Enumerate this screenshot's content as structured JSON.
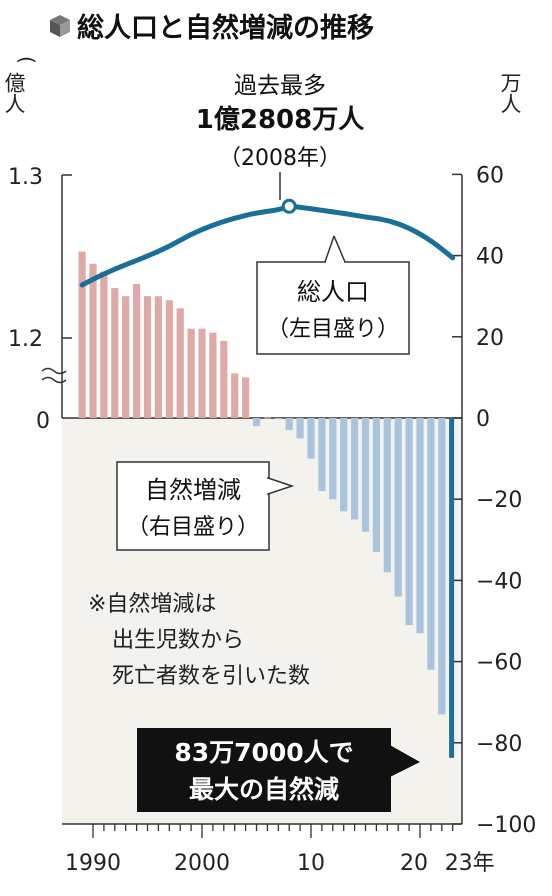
{
  "title": "総人口と自然増減の推移",
  "left_unit": "億人",
  "right_unit": "万人",
  "peak_annotation": {
    "line1": "過去最多",
    "line2": "1億2808万人",
    "line3": "（2008年）"
  },
  "population_label": {
    "line1": "総人口",
    "line2": "（左目盛り）"
  },
  "natural_label": {
    "line1": "自然増減",
    "line2": "（右目盛り）"
  },
  "note": {
    "line1": "※自然増減は",
    "line2": "出生児数から",
    "line3": "死亡者数を引いた数"
  },
  "callout": {
    "line1": "83万7000人で",
    "line2": "最大の自然減"
  },
  "colors": {
    "population_line": "#1a6f96",
    "positive_bar": "#dea9a6",
    "negative_bar": "#a9c4dc",
    "highlight_bar": "#1a6f96",
    "lower_panel_bg": "#f3f2ed",
    "callout_bg": "#111111"
  },
  "chart_data": {
    "type": "bar+line",
    "x_ticks": [
      "1990",
      "2000",
      "10",
      "20",
      "23年"
    ],
    "left_axis": {
      "ticks": [
        "1.3",
        "1.2",
        "0"
      ],
      "range_upper": [
        1.2,
        1.3
      ],
      "unit": "億人"
    },
    "right_axis": {
      "ticks": [
        "60",
        "40",
        "20",
        "0",
        "−20",
        "−40",
        "−60",
        "−80",
        "−100"
      ],
      "range": [
        -100,
        60
      ],
      "unit": "万人"
    },
    "natural_change": {
      "name": "自然増減",
      "unit": "万人",
      "years": [
        1989,
        1990,
        1991,
        1992,
        1993,
        1994,
        1995,
        1996,
        1997,
        1998,
        1999,
        2000,
        2001,
        2002,
        2003,
        2004,
        2005,
        2006,
        2007,
        2008,
        2009,
        2010,
        2011,
        2012,
        2013,
        2014,
        2015,
        2016,
        2017,
        2018,
        2019,
        2020,
        2021,
        2022,
        2023
      ],
      "values": [
        41,
        38,
        36,
        32,
        30,
        33,
        30,
        30,
        29,
        27,
        22,
        22,
        21,
        19,
        11,
        10,
        -2,
        0.1,
        -0.2,
        -3,
        -5,
        -10,
        -18,
        -20,
        -23,
        -25,
        -28,
        -33,
        -38,
        -44,
        -51,
        -53,
        -62,
        -73,
        -83.7
      ]
    },
    "population": {
      "name": "総人口",
      "unit": "億人",
      "years": [
        1989,
        1991,
        1993,
        1995,
        1997,
        1999,
        2001,
        2003,
        2005,
        2007,
        2008,
        2009,
        2011,
        2013,
        2015,
        2017,
        2019,
        2021,
        2023
      ],
      "values": [
        1.2325,
        1.2395,
        1.245,
        1.2502,
        1.2562,
        1.2637,
        1.2693,
        1.2736,
        1.2768,
        1.2786,
        1.2808,
        1.2803,
        1.2783,
        1.2765,
        1.2742,
        1.2724,
        1.2676,
        1.2599,
        1.2492
      ]
    },
    "peak": {
      "year": 2008,
      "value": 1.2808
    }
  }
}
